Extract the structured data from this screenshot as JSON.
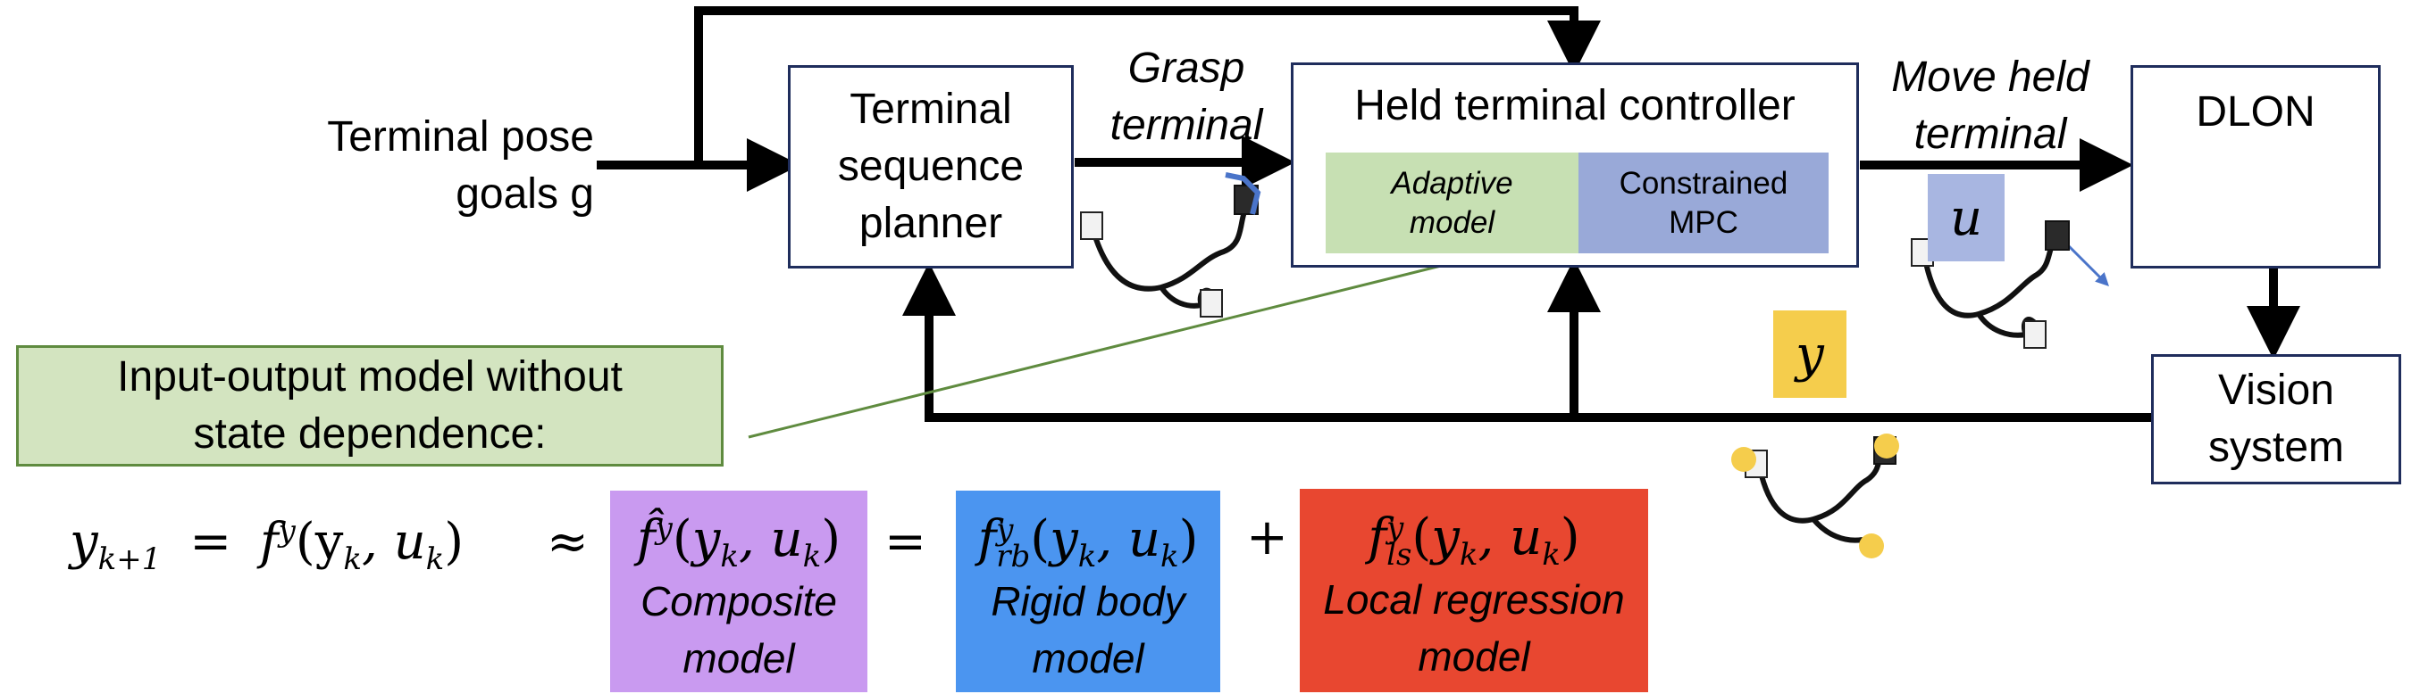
{
  "input": {
    "label": "Terminal pose\ngoals g"
  },
  "planner": {
    "label": "Terminal\nsequence\nplanner"
  },
  "edge_grasp": {
    "label": "Grasp\nterminal"
  },
  "controller": {
    "title": "Held terminal controller",
    "adaptive": "Adaptive\nmodel",
    "mpc": "Constrained\nMPC"
  },
  "edge_move": {
    "label": "Move held\nterminal"
  },
  "dlon": {
    "label": "DLON"
  },
  "vision": {
    "label": "Vision\nsystem"
  },
  "u_symbol": "u",
  "y_symbol": "y",
  "model_note": {
    "label": "Input-output model without\nstate dependence:"
  },
  "equation": {
    "lhs": "y",
    "lhs_sub": "k+1",
    "eq1": "=",
    "f": "f",
    "f_sup": "y",
    "args": "(y",
    "args_k": "k",
    "args_mid": ", u",
    "args_k2": "k",
    "args_end": ")",
    "approx": "≈",
    "eq2": "=",
    "plus": "+",
    "composite": {
      "fn": "f̂",
      "sup": "y",
      "caption": "Composite\nmodel"
    },
    "rigid": {
      "fn": "f",
      "sup": "y",
      "sub": "rb",
      "caption": "Rigid body\nmodel"
    },
    "local": {
      "fn": "f",
      "sup": "y",
      "sub": "ls",
      "caption": "Local regression\nmodel"
    }
  },
  "colors": {
    "box_border": "#1f2d5c",
    "adaptive_fill": "#c7e0b3",
    "mpc_fill": "#99a9d8",
    "note_fill": "#d3e4c0",
    "note_border": "#5f8b3f",
    "u_fill": "#a8b6e1",
    "y_fill": "#f5cd4c",
    "composite_fill": "#c99af0",
    "rigid_fill": "#4b95f0",
    "local_fill": "#e84730",
    "leader_line": "#5f8b3f"
  }
}
